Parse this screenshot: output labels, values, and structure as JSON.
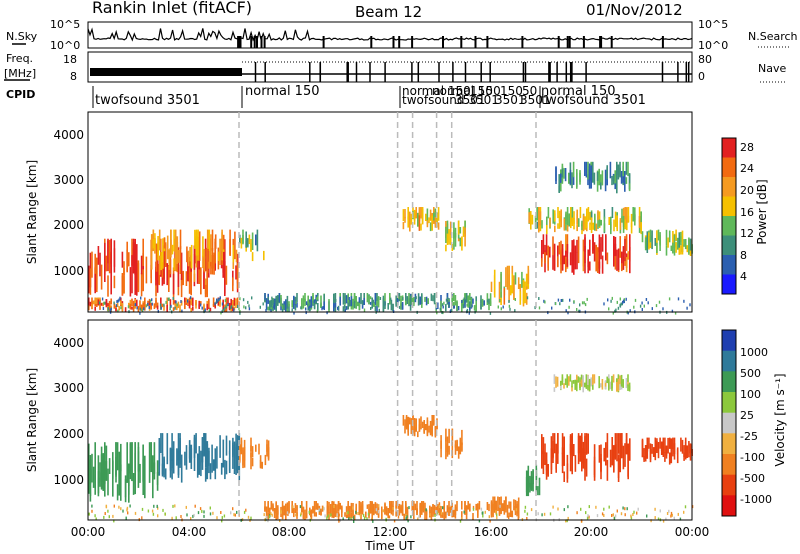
{
  "header": {
    "station": "Rankin Inlet (fitACF)",
    "beam": "Beam 12",
    "date": "01/Nov/2012"
  },
  "noise_panel": {
    "left_label": "N.Sky",
    "right_label": "N.Search",
    "ytick_top": "10^5",
    "ytick_bottom": "10^0"
  },
  "freq_panel": {
    "left_label_1": "Freq.",
    "left_label_2": "[MHz]",
    "left_ticks": [
      "18",
      "8"
    ],
    "right_ticks": [
      "80",
      "0"
    ],
    "right_label": "Nave"
  },
  "cpid_panel": {
    "label": "CPID",
    "segments": [
      "twofsound 3501",
      "normal 150",
      "normal 150",
      "twofsound 3501"
    ],
    "crowded_labels": [
      "normal 150",
      "twofsound 3501",
      "normal 150",
      "3501",
      "150",
      "3501",
      "150",
      "3501",
      "50"
    ]
  },
  "power_panel": {
    "ylabel": "Slant Range [km]",
    "yticks": [
      "1000",
      "2000",
      "3000",
      "4000"
    ],
    "colorbar_label": "Power [dB]",
    "colorbar_ticks": [
      "4",
      "8",
      "12",
      "16",
      "20",
      "24",
      "28"
    ]
  },
  "velocity_panel": {
    "ylabel": "Slant Range [km]",
    "yticks": [
      "1000",
      "2000",
      "3000",
      "4000"
    ],
    "colorbar_label": "Velocity [m s⁻¹]",
    "colorbar_ticks": [
      "1000",
      "500",
      "100",
      "25",
      "-25",
      "-100",
      "-500",
      "-1000"
    ]
  },
  "xaxis": {
    "label": "Time UT",
    "ticks": [
      "00:00",
      "04:00",
      "08:00",
      "12:00",
      "16:00",
      "20:00",
      "00:00"
    ]
  },
  "colors": {
    "power_scale": [
      "#1a1aff",
      "#2b5fb0",
      "#3d8f7a",
      "#5fb85a",
      "#f5c000",
      "#f59a20",
      "#f26a10",
      "#e22020"
    ],
    "velocity_scale": [
      "#1f3fb0",
      "#2f7a9a",
      "#3d9a55",
      "#8cc83c",
      "#c8c8c8",
      "#f0b040",
      "#f08020",
      "#e84010",
      "#e01010"
    ]
  },
  "chart_data": [
    {
      "type": "heatmap",
      "title": "Power",
      "x": {
        "label": "Time UT",
        "range_hours": [
          0,
          24
        ]
      },
      "y": {
        "label": "Slant Range [km]",
        "range_km": [
          180,
          4600
        ]
      },
      "z": {
        "label": "Power [dB]",
        "range": [
          0,
          30
        ]
      },
      "regions": [
        {
          "t": [
            0.0,
            6.0
          ],
          "r": [
            500,
            1800
          ],
          "v": 27
        },
        {
          "t": [
            2.5,
            6.0
          ],
          "r": [
            1000,
            2000
          ],
          "v": 20
        },
        {
          "t": [
            6.0,
            7.0
          ],
          "r": [
            1300,
            2000
          ],
          "v": 12
        },
        {
          "t": [
            0.0,
            6.0
          ],
          "r": [
            180,
            500
          ],
          "v": 24
        },
        {
          "t": [
            7.0,
            16.0
          ],
          "r": [
            180,
            600
          ],
          "v": 10
        },
        {
          "t": [
            12.5,
            13.9
          ],
          "r": [
            1950,
            2500
          ],
          "v": 18
        },
        {
          "t": [
            14.0,
            15.0
          ],
          "r": [
            1500,
            2200
          ],
          "v": 18
        },
        {
          "t": [
            16.0,
            17.5
          ],
          "r": [
            300,
            1200
          ],
          "v": 18
        },
        {
          "t": [
            18.0,
            21.5
          ],
          "r": [
            1000,
            1900
          ],
          "v": 27
        },
        {
          "t": [
            17.5,
            22.0
          ],
          "r": [
            1900,
            2500
          ],
          "v": 16
        },
        {
          "t": [
            22.0,
            24.0
          ],
          "r": [
            1400,
            2000
          ],
          "v": 14
        },
        {
          "t": [
            18.5,
            21.5
          ],
          "r": [
            2800,
            3500
          ],
          "v": 10
        }
      ]
    },
    {
      "type": "heatmap",
      "title": "Velocity",
      "x": {
        "label": "Time UT",
        "range_hours": [
          0,
          24
        ]
      },
      "y": {
        "label": "Slant Range [km]",
        "range_km": [
          180,
          4600
        ]
      },
      "z": {
        "label": "Velocity [m s-1]",
        "range": [
          -1000,
          1000
        ]
      },
      "regions": [
        {
          "t": [
            0.0,
            2.8
          ],
          "r": [
            500,
            1900
          ],
          "v": 300
        },
        {
          "t": [
            2.8,
            6.0
          ],
          "r": [
            1000,
            2100
          ],
          "v": 700
        },
        {
          "t": [
            6.0,
            7.2
          ],
          "r": [
            1300,
            2000
          ],
          "v": -300
        },
        {
          "t": [
            7.0,
            16.0
          ],
          "r": [
            180,
            600
          ],
          "v": -200
        },
        {
          "t": [
            12.5,
            13.9
          ],
          "r": [
            2000,
            2500
          ],
          "v": -300
        },
        {
          "t": [
            14.0,
            15.0
          ],
          "r": [
            1500,
            2200
          ],
          "v": -300
        },
        {
          "t": [
            16.0,
            17.2
          ],
          "r": [
            200,
            700
          ],
          "v": -400
        },
        {
          "t": [
            17.4,
            18.0
          ],
          "r": [
            700,
            1400
          ],
          "v": 300
        },
        {
          "t": [
            18.0,
            21.5
          ],
          "r": [
            1000,
            2100
          ],
          "v": -800
        },
        {
          "t": [
            18.5,
            21.5
          ],
          "r": [
            3000,
            3400
          ],
          "v": 0
        },
        {
          "t": [
            22.0,
            24.0
          ],
          "r": [
            1400,
            2000
          ],
          "v": -700
        }
      ]
    }
  ]
}
